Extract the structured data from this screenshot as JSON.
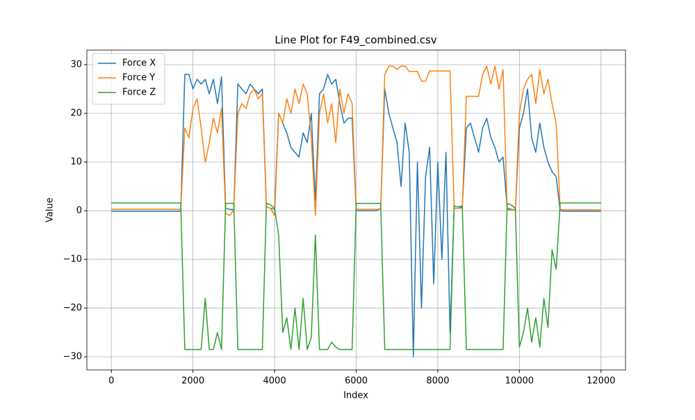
{
  "chart_data": {
    "type": "line",
    "title": "Line Plot for F49_combined.csv",
    "x_label": "Index",
    "y_label": "Value",
    "x": [
      0,
      100,
      200,
      300,
      400,
      500,
      600,
      700,
      800,
      900,
      1000,
      1100,
      1200,
      1300,
      1400,
      1500,
      1600,
      1700,
      1800,
      1900,
      2000,
      2100,
      2200,
      2300,
      2400,
      2500,
      2600,
      2700,
      2800,
      2900,
      3000,
      3100,
      3200,
      3300,
      3400,
      3500,
      3600,
      3700,
      3800,
      3900,
      4000,
      4100,
      4200,
      4300,
      4400,
      4500,
      4600,
      4700,
      4800,
      4900,
      5000,
      5100,
      5200,
      5300,
      5400,
      5500,
      5600,
      5700,
      5800,
      5900,
      6000,
      6100,
      6200,
      6300,
      6400,
      6500,
      6600,
      6700,
      6800,
      6900,
      7000,
      7100,
      7200,
      7300,
      7400,
      7500,
      7600,
      7700,
      7800,
      7900,
      8000,
      8100,
      8200,
      8300,
      8400,
      8500,
      8600,
      8700,
      8800,
      8900,
      9000,
      9100,
      9200,
      9300,
      9400,
      9500,
      9600,
      9700,
      9800,
      9900,
      10000,
      10100,
      10200,
      10300,
      10400,
      10500,
      10600,
      10700,
      10800,
      10900,
      11000,
      11100,
      11200,
      11300,
      11400,
      11500,
      11600,
      11700,
      11800,
      11900,
      12000
    ],
    "series": [
      {
        "name": "Force X",
        "color": "#1f77b4",
        "values": [
          -0.1,
          -0.1,
          -0.1,
          -0.1,
          -0.1,
          -0.1,
          -0.1,
          -0.1,
          -0.1,
          -0.1,
          -0.1,
          -0.1,
          -0.1,
          -0.1,
          -0.1,
          -0.1,
          -0.1,
          -0.1,
          28,
          28,
          25,
          27,
          26,
          27,
          24,
          27,
          22,
          27.5,
          0.5,
          0.3,
          0.2,
          26,
          25,
          24,
          26,
          25,
          24,
          25,
          0.8,
          0.5,
          0.3,
          20,
          18,
          16,
          13,
          12,
          11,
          16,
          14,
          20,
          2,
          24,
          25,
          28,
          26,
          27,
          22,
          18,
          19,
          19,
          0,
          0,
          0,
          0,
          0,
          0,
          0.5,
          25,
          20,
          17,
          14,
          5,
          18,
          12,
          -30,
          10,
          -20,
          7,
          13,
          -15,
          10,
          -10,
          12,
          -25,
          0.5,
          0.5,
          0.8,
          17,
          18,
          15,
          12,
          17,
          19,
          15,
          13,
          10,
          11,
          0.5,
          0.3,
          0.2,
          17,
          20,
          25,
          15,
          12,
          18,
          13,
          10,
          8,
          7,
          0,
          -0.1,
          -0.1,
          -0.1,
          -0.1,
          -0.1,
          -0.1,
          -0.1,
          -0.1,
          -0.1,
          -0.1
        ]
      },
      {
        "name": "Force Y",
        "color": "#ff7f0e",
        "values": [
          0.3,
          0.3,
          0.3,
          0.3,
          0.3,
          0.3,
          0.3,
          0.3,
          0.3,
          0.3,
          0.3,
          0.3,
          0.3,
          0.3,
          0.3,
          0.3,
          0.3,
          0.3,
          17,
          15,
          21,
          23,
          17,
          10,
          14,
          19,
          16,
          21,
          -0.5,
          -1,
          0.2,
          20,
          22,
          21,
          24,
          25,
          23,
          24,
          0.8,
          0.5,
          -1,
          20,
          18,
          23,
          20,
          25,
          22,
          26,
          24,
          15,
          -1,
          20,
          24,
          18,
          22,
          14,
          25,
          20,
          24,
          22,
          0.3,
          0.3,
          0.3,
          0.3,
          0.3,
          0.3,
          0.3,
          28,
          29.7,
          29.7,
          29,
          29.7,
          29.7,
          28.6,
          28.6,
          28.6,
          26.6,
          26.6,
          28.7,
          28.7,
          28.7,
          28.7,
          28.7,
          28.7,
          0.5,
          0.5,
          0.5,
          23.5,
          23.5,
          23.5,
          23.5,
          28,
          29.7,
          26,
          29.7,
          25,
          29,
          0.2,
          0.2,
          0.2,
          20,
          25,
          27,
          28,
          22,
          29,
          24,
          27,
          22,
          18,
          0.2,
          0.2,
          0.2,
          0.2,
          0.2,
          0.2,
          0.2,
          0.2,
          0.2,
          0.2,
          0.2
        ]
      },
      {
        "name": "Force Z",
        "color": "#2ca02c",
        "values": [
          1.6,
          1.6,
          1.6,
          1.6,
          1.6,
          1.6,
          1.6,
          1.6,
          1.6,
          1.6,
          1.6,
          1.6,
          1.6,
          1.6,
          1.6,
          1.6,
          1.6,
          1.6,
          -28.5,
          -28.5,
          -28.5,
          -28.5,
          -28.5,
          -18,
          -28.5,
          -28.5,
          -25,
          -28.5,
          1.5,
          1.5,
          1.5,
          -28.5,
          -28.5,
          -28.5,
          -28.5,
          -28.5,
          -28.5,
          -28.5,
          1.5,
          1.2,
          0.5,
          -5,
          -25,
          -22,
          -28.5,
          -20,
          -28.5,
          -18,
          -28.5,
          -26,
          -5,
          -28.5,
          -28.5,
          -28.5,
          -27,
          -28,
          -28.5,
          -28.5,
          -28.5,
          -28.5,
          1.5,
          1.5,
          1.5,
          1.5,
          1.5,
          1.5,
          1.5,
          -28.5,
          -28.5,
          -28.5,
          -28.5,
          -28.5,
          -28.5,
          -28.5,
          -28.5,
          -28.5,
          -28.5,
          -28.5,
          -28.5,
          -28.5,
          -28.5,
          -28.5,
          -28.5,
          -28.5,
          1,
          0.8,
          1,
          -28.5,
          -28.5,
          -28.5,
          -28.5,
          -28.5,
          -28.5,
          -28.5,
          -28.5,
          -28.5,
          -28.5,
          1.5,
          1.2,
          0.5,
          -28,
          -25,
          -20,
          -27,
          -22,
          -28,
          -18,
          -24,
          -8,
          -12,
          1.6,
          1.6,
          1.6,
          1.6,
          1.6,
          1.6,
          1.6,
          1.6,
          1.6,
          1.6,
          1.6
        ]
      }
    ],
    "xlim": [
      -600,
      12600
    ],
    "ylim": [
      -32.7,
      33
    ],
    "xticks": [
      0,
      2000,
      4000,
      6000,
      8000,
      10000,
      12000
    ],
    "yticks": [
      {
        "value": -30,
        "label": "−30"
      },
      {
        "value": -20,
        "label": "−20"
      },
      {
        "value": -10,
        "label": "−10"
      },
      0,
      10,
      20,
      30
    ],
    "grid": true,
    "legend": "upper-left"
  }
}
